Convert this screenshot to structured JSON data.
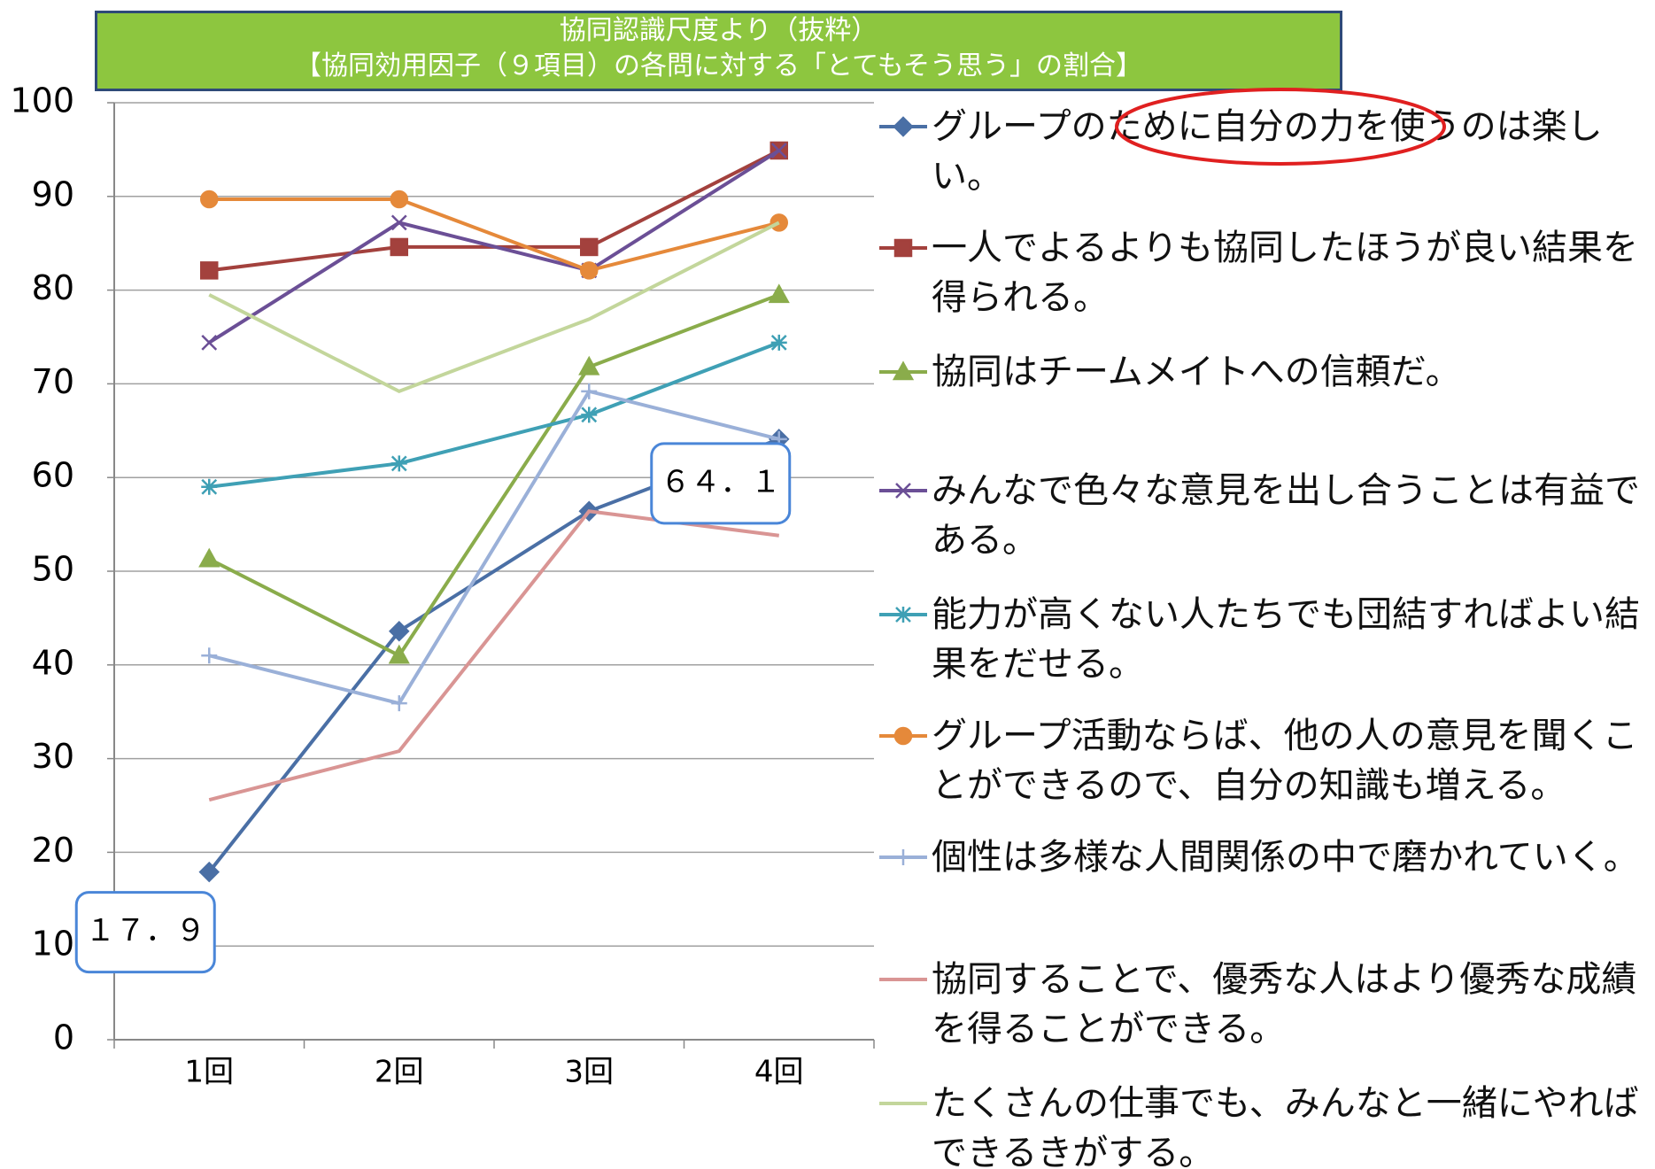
{
  "chart_data": {
    "type": "line",
    "title": "協同認識尺度より（抜粋）",
    "subtitle": "【協同効用因子（９項目）の各問に対する「とてもそう思う」の割合】",
    "categories": [
      "1回",
      "2回",
      "3回",
      "4回"
    ],
    "ylim": [
      0,
      100
    ],
    "yticks": [
      0,
      10,
      20,
      30,
      40,
      50,
      60,
      70,
      80,
      90,
      100
    ],
    "grid": true,
    "legend": "right",
    "series": [
      {
        "name": "グループのために自分の力を使うのは楽しい。",
        "color": "#4a6fa5",
        "marker": "diamond",
        "values": [
          17.9,
          43.6,
          56.4,
          64.1
        ],
        "value_labels": [
          "１７．９",
          null,
          null,
          "６４．１"
        ]
      },
      {
        "name": "一人でよるよりも協同したほうが良い結果を得られる。",
        "color": "#a3413d",
        "marker": "square",
        "values": [
          82.1,
          84.6,
          84.6,
          94.9
        ]
      },
      {
        "name": "協同はチームメイトへの信頼だ。",
        "color": "#8aac4b",
        "marker": "triangle",
        "values": [
          51.3,
          41.0,
          71.8,
          79.5
        ]
      },
      {
        "name": "みんなで色々な意見を出し合うことは有益である。",
        "color": "#6b4f96",
        "marker": "x",
        "values": [
          74.4,
          87.2,
          82.1,
          94.9
        ]
      },
      {
        "name": "能力が高くない人たちでも団結すればよい結果をだせる。",
        "color": "#3fa0b5",
        "marker": "asterisk",
        "values": [
          59.0,
          61.5,
          66.7,
          74.4
        ]
      },
      {
        "name": "グループ活動ならば、他の人の意見を聞くことができるので、自分の知識も増える。",
        "color": "#e5893a",
        "marker": "circle",
        "values": [
          89.7,
          89.7,
          82.1,
          87.2
        ]
      },
      {
        "name": "個性は多様な人間関係の中で磨かれていく。",
        "color": "#9ab0d8",
        "marker": "plus",
        "values": [
          41.0,
          35.9,
          69.2,
          64.1
        ]
      },
      {
        "name": "協同することで、優秀な人はより優秀な成績を得ることができる。",
        "color": "#d99594",
        "marker": "none",
        "values": [
          25.6,
          30.8,
          56.4,
          53.8
        ]
      },
      {
        "name": "たくさんの仕事でも、みんなと一緒にやればできるきがする。",
        "color": "#c3d69b",
        "marker": "none",
        "values": [
          79.5,
          69.2,
          76.9,
          87.2
        ]
      }
    ]
  }
}
